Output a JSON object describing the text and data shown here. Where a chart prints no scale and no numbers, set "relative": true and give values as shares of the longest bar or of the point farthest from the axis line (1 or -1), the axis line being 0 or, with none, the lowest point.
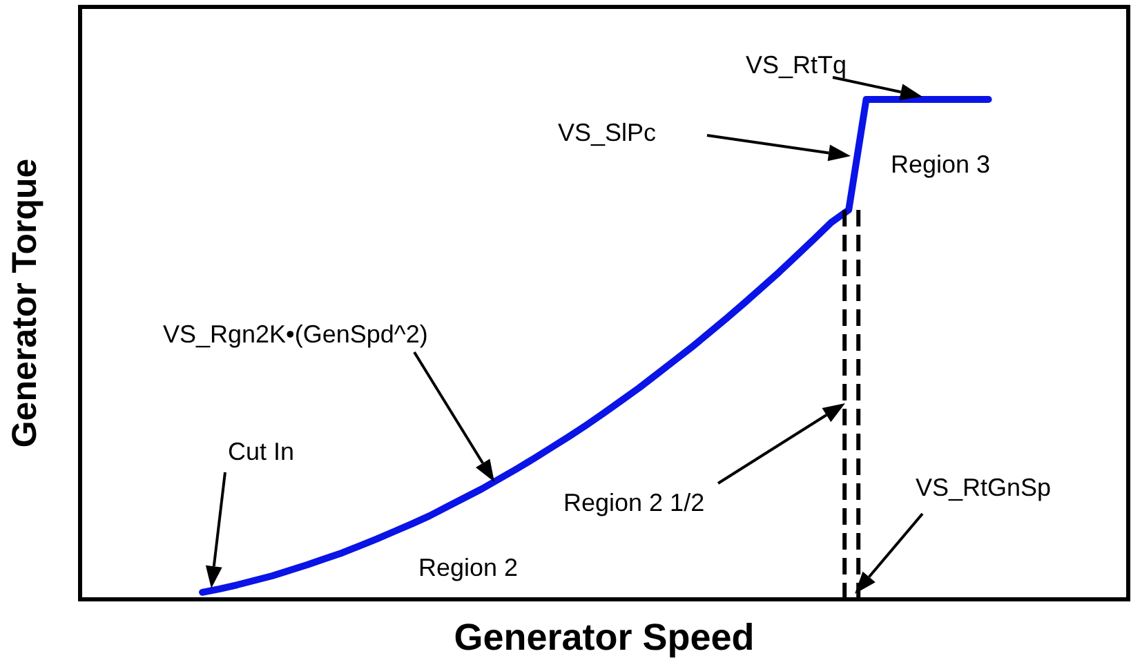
{
  "chart_data": {
    "type": "line",
    "relative": true,
    "xlabel": "Generator Speed",
    "ylabel": "Generator Torque",
    "categories": [
      null,
      null,
      null,
      null,
      null,
      null,
      null,
      null,
      null,
      null,
      null,
      null,
      null,
      null,
      null,
      null,
      null,
      null,
      null,
      null,
      null,
      null,
      null,
      null,
      null,
      null,
      null,
      null,
      null,
      null,
      null,
      null,
      null,
      null,
      null,
      null,
      null,
      null,
      null,
      null,
      null,
      null,
      null,
      null,
      null,
      null,
      null,
      null,
      null,
      null,
      null,
      null,
      null,
      null,
      null,
      null,
      null,
      null,
      null,
      null,
      null
    ],
    "series": [
      {
        "color": "#0a14e6",
        "values": [
          null,
          null,
          null,
          null,
          null,
          null,
          null,
          0.014,
          0.021,
          0.029,
          0.038,
          0.047,
          0.058,
          0.069,
          0.081,
          0.093,
          0.107,
          0.121,
          0.136,
          0.151,
          0.167,
          0.185,
          0.203,
          0.221,
          0.241,
          0.261,
          0.282,
          0.304,
          0.326,
          0.349,
          0.373,
          0.398,
          0.423,
          0.45,
          0.477,
          0.504,
          0.533,
          0.562,
          0.592,
          0.623,
          0.654,
          0.687,
          0.72,
          0.754,
          0.779,
          1,
          1,
          1,
          1,
          1,
          1,
          1,
          1,
          null,
          null,
          null,
          null,
          null,
          null,
          null,
          null
        ]
      }
    ],
    "line_style": "solid",
    "annotations": [
      "Cut In",
      "VS_Rgn2K•(GenSpd^2)",
      "VS_SlPc",
      "VS_RtTq",
      "Region 2 1/2",
      "VS_RtGnSp",
      "Region 2",
      "Region 3"
    ]
  }
}
